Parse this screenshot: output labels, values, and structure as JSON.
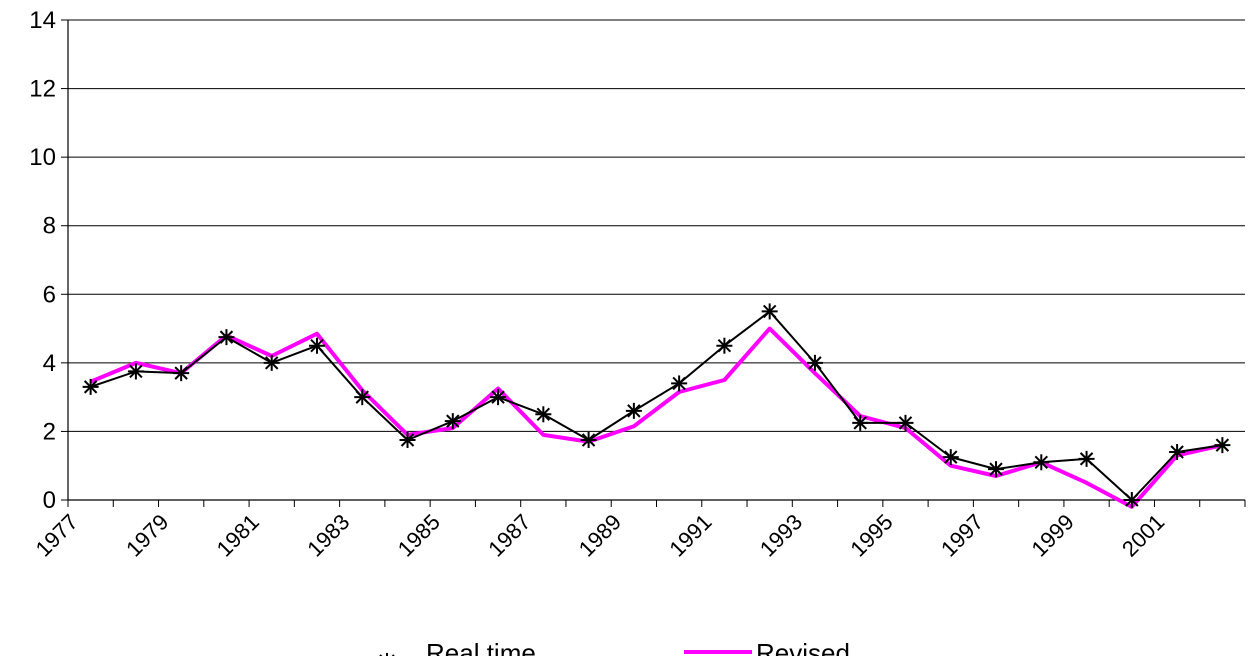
{
  "chart_data": {
    "type": "line",
    "title": "",
    "xlabel": "",
    "ylabel": "",
    "ylim": [
      0,
      14
    ],
    "yticks": [
      0,
      2,
      4,
      6,
      8,
      10,
      12,
      14
    ],
    "x_tick_labels": [
      "1977",
      "1979",
      "1981",
      "1983",
      "1985",
      "1987",
      "1989",
      "1991",
      "1993",
      "1995",
      "1997",
      "1999",
      "2001"
    ],
    "x": [
      1977,
      1978,
      1979,
      1980,
      1981,
      1982,
      1983,
      1984,
      1985,
      1986,
      1987,
      1988,
      1989,
      1990,
      1991,
      1992,
      1993,
      1994,
      1995,
      1996,
      1997,
      1998,
      1999,
      2000,
      2001,
      2002
    ],
    "grid": "horizontal",
    "legend_position": "bottom",
    "series": [
      {
        "name": "Real time",
        "color": "#000000",
        "marker": "asterisk",
        "values": [
          3.3,
          3.75,
          3.7,
          4.75,
          4.0,
          4.5,
          3.0,
          1.75,
          2.3,
          3.0,
          2.5,
          1.75,
          2.6,
          3.4,
          4.5,
          5.5,
          4.0,
          2.25,
          2.25,
          1.25,
          0.9,
          1.1,
          1.2,
          0.0,
          1.4,
          1.6
        ]
      },
      {
        "name": "Revised",
        "color": "#ff00ff",
        "marker": "none",
        "values": [
          3.45,
          4.0,
          3.7,
          4.8,
          4.2,
          4.85,
          3.2,
          1.9,
          2.1,
          3.25,
          1.9,
          1.7,
          2.15,
          3.15,
          3.5,
          5.0,
          3.7,
          2.45,
          2.1,
          1.0,
          0.7,
          1.1,
          0.5,
          -0.2,
          1.3,
          1.6
        ]
      }
    ]
  }
}
